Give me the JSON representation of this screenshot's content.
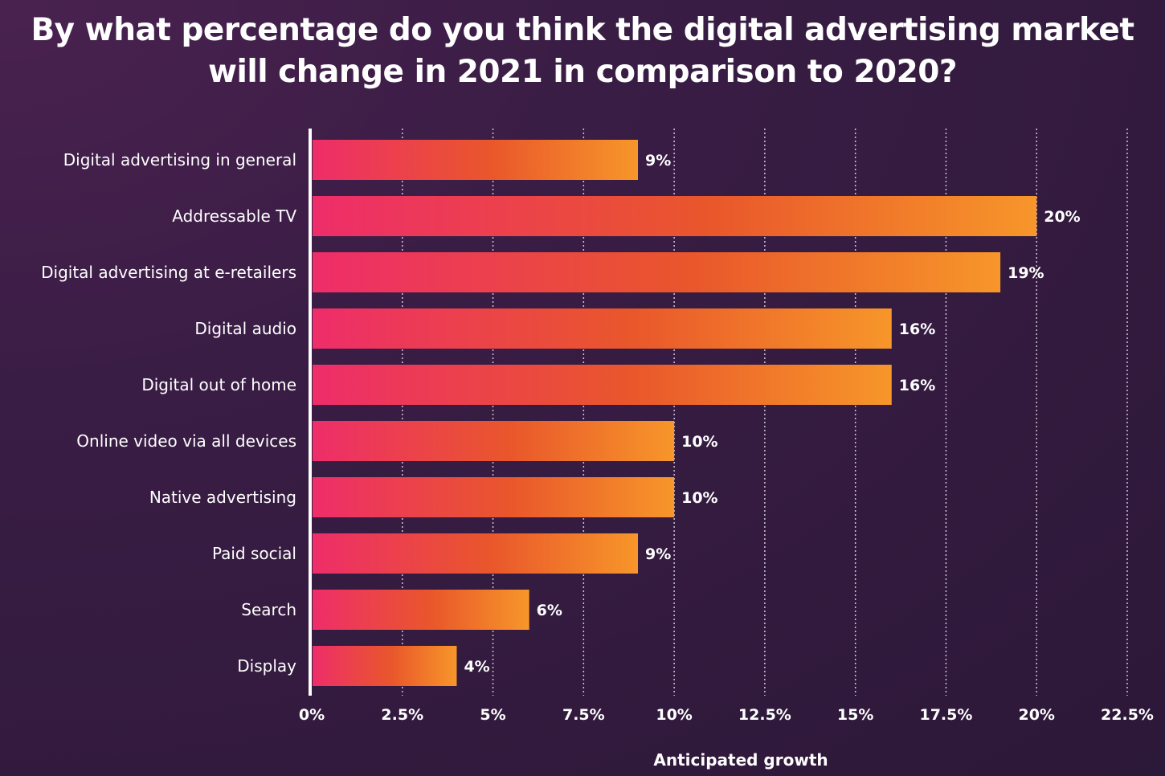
{
  "chart_data": {
    "type": "bar",
    "orientation": "horizontal",
    "title_line1": "By what percentage do you think the digital advertising market",
    "title_line2": "will change in 2021 in comparison to 2020?",
    "xlabel": "Anticipated growth",
    "ylabel": "",
    "xlim": [
      0,
      22.5
    ],
    "grid": "vertical dotted",
    "categories": [
      "Digital advertising in general",
      "Addressable TV",
      "Digital advertising at e-retailers",
      "Digital audio",
      "Digital out of home",
      "Online video via all devices",
      "Native advertising",
      "Paid social",
      "Search",
      "Display"
    ],
    "values": [
      9,
      20,
      19,
      16,
      16,
      10,
      10,
      9,
      6,
      4
    ],
    "value_labels": [
      "9%",
      "20%",
      "19%",
      "16%",
      "16%",
      "10%",
      "10%",
      "9%",
      "6%",
      "4%"
    ],
    "ticks": [
      0,
      2.5,
      5,
      7.5,
      10,
      12.5,
      15,
      17.5,
      20,
      22.5
    ],
    "tick_labels": [
      "0%",
      "2.5%",
      "5%",
      "7.5%",
      "10%",
      "12.5%",
      "15%",
      "17.5%",
      "20%",
      "22.5%"
    ],
    "colors": {
      "bar_start": "#ee2d6a",
      "bar_mid": "#e9572b",
      "bar_end": "#f7962a",
      "grid": "#cfc3d6",
      "axis": "#ffffff"
    }
  }
}
